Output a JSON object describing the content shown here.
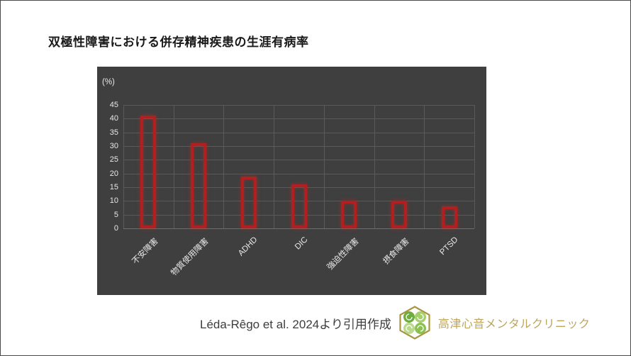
{
  "page": {
    "title": "双極性障害における併存精神疾患の生涯有病率"
  },
  "chart_data": {
    "type": "bar",
    "title": "双極性障害における併存精神疾患の生涯有病率",
    "unit_label": "(%)",
    "categories": [
      "不安障害",
      "物質使用障害",
      "ADHD",
      "DIC",
      "強迫性障害",
      "摂食障害",
      "PTSD"
    ],
    "values": [
      41,
      31,
      19,
      16,
      10,
      10,
      8
    ],
    "xlabel": "",
    "ylabel": "(%)",
    "ylim": [
      0,
      45
    ],
    "ytick_step": 5,
    "grid": true,
    "legend": false,
    "bar_style": "hollow-outline",
    "style": {
      "background": "#3f3f3f",
      "gridline": "#5a5a5a",
      "bar_outline": "#b02020",
      "axis_text": "#e8e8e8",
      "title_color": "#1a1a1a"
    }
  },
  "footer": {
    "citation": "Léda-Rêgo et al. 2024より引用作成",
    "clinic_name": "高津心音メンタルクリニック",
    "citation_color": "#3d3d3d",
    "clinic_name_color": "#bda55e",
    "logo": "hexagon-four-leaf-clover-logo",
    "logo_colors": {
      "hex_stroke": "#a9953f",
      "greens": [
        "#6fae3e",
        "#a5cf6a",
        "#b9d98b",
        "#8cc152"
      ]
    }
  }
}
